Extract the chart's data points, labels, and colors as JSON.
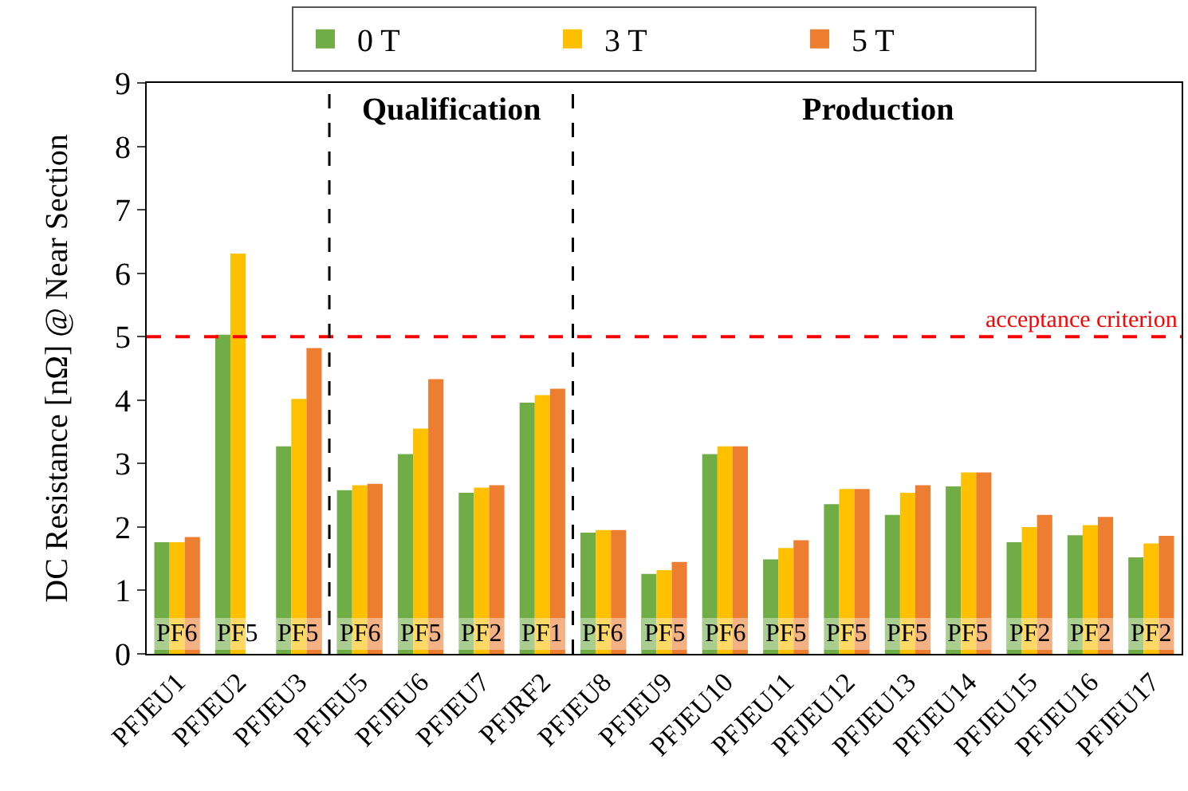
{
  "chart_data": {
    "type": "bar",
    "ylabel": "DC Resistance [nΩ] @ Near Section",
    "categories": [
      "PFJEU1",
      "PFJEU2",
      "PFJEU3",
      "PFJEU5",
      "PFJEU6",
      "PFJEU7",
      "PFJRF2",
      "PFJEU8",
      "PFJEU9",
      "PFJEU10",
      "PFJEU11",
      "PFJEU12",
      "PFJEU13",
      "PFJEU14",
      "PFJEU15",
      "PFJEU16",
      "PFJEU17"
    ],
    "series": [
      {
        "name": "0 T",
        "color": "#70ad47",
        "values": [
          1.76,
          5.03,
          3.27,
          2.58,
          3.15,
          2.54,
          3.96,
          1.91,
          1.26,
          3.15,
          1.49,
          2.36,
          2.19,
          2.64,
          1.76,
          1.87,
          1.52
        ]
      },
      {
        "name": "3 T",
        "color": "#ffc000",
        "values": [
          1.76,
          6.31,
          4.02,
          2.66,
          3.55,
          2.62,
          4.08,
          1.95,
          1.32,
          3.27,
          1.67,
          2.6,
          2.54,
          2.86,
          2.0,
          2.03,
          1.74
        ]
      },
      {
        "name": "5 T",
        "color": "#ed7d31",
        "values": [
          1.84,
          null,
          4.82,
          2.68,
          4.33,
          2.66,
          4.18,
          1.95,
          1.45,
          3.27,
          1.79,
          2.6,
          2.66,
          2.86,
          2.19,
          2.16,
          1.86
        ]
      }
    ],
    "ylim": [
      0,
      9
    ],
    "yticks": [
      0,
      1,
      2,
      3,
      4,
      5,
      6,
      7,
      8,
      9
    ],
    "grid": false,
    "legend": "top",
    "ref_lines": [
      {
        "axis": "y",
        "value": 5,
        "label": "acceptance criterion",
        "color": "#ff0000",
        "line_style": "dashed"
      }
    ],
    "annotations": [
      "Qualification",
      "Production",
      "PF6",
      "PF5",
      "PF5",
      "PF6",
      "PF5",
      "PF2",
      "PF1",
      "PF6",
      "PF5",
      "PF6",
      "PF5",
      "PF5",
      "PF5",
      "PF5",
      "PF2",
      "PF2",
      "PF2"
    ]
  }
}
